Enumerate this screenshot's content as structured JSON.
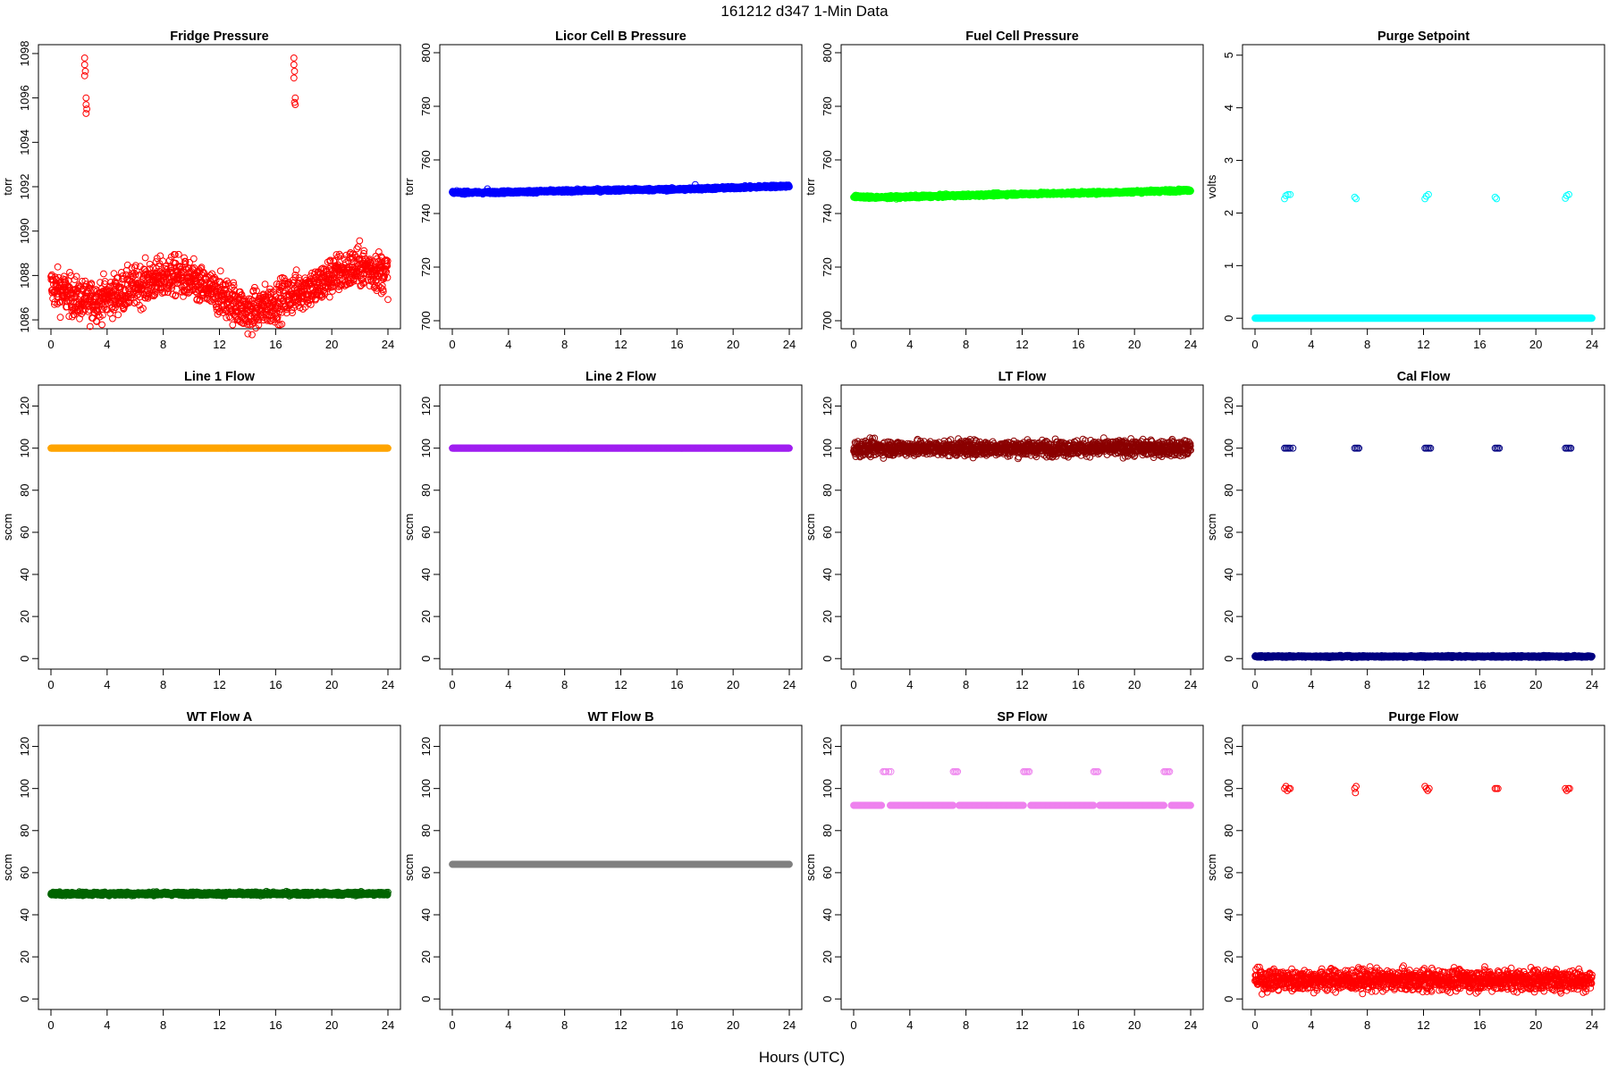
{
  "figure": {
    "title": "161212   d347   1-Min Data",
    "xlabel": "Hours (UTC)"
  },
  "chart_data": [
    {
      "type": "scatter",
      "title": "Fridge Pressure",
      "ylabel": "torr",
      "color": "#ff0000",
      "marker": "open-circle",
      "xlim": [
        0,
        24
      ],
      "xticks": [
        0,
        4,
        8,
        12,
        16,
        20,
        24
      ],
      "ylim": [
        1085.6,
        1098.4
      ],
      "yticks": [
        1086,
        1088,
        1090,
        1092,
        1094,
        1096,
        1098
      ],
      "baseline_trend": [
        [
          0,
          1087.5
        ],
        [
          1,
          1087.2
        ],
        [
          2.5,
          1086.8
        ],
        [
          4,
          1087.0
        ],
        [
          6,
          1087.5
        ],
        [
          8,
          1087.9
        ],
        [
          9,
          1088.0
        ],
        [
          11,
          1087.4
        ],
        [
          13,
          1086.8
        ],
        [
          14,
          1086.3
        ],
        [
          16,
          1086.8
        ],
        [
          18,
          1087.4
        ],
        [
          19,
          1087.5
        ],
        [
          20,
          1088.0
        ],
        [
          22,
          1088.4
        ],
        [
          24,
          1088.1
        ]
      ],
      "scatter_amplitude": 0.45,
      "spike_points": [
        [
          2.4,
          1097.8
        ],
        [
          2.4,
          1097.5
        ],
        [
          2.45,
          1097.2
        ],
        [
          2.4,
          1097.0
        ],
        [
          2.5,
          1096.0
        ],
        [
          2.5,
          1095.7
        ],
        [
          2.55,
          1095.5
        ],
        [
          2.5,
          1095.3
        ],
        [
          17.3,
          1097.8
        ],
        [
          17.3,
          1097.5
        ],
        [
          17.35,
          1097.2
        ],
        [
          17.3,
          1096.9
        ],
        [
          17.4,
          1096.0
        ],
        [
          17.35,
          1095.8
        ],
        [
          17.4,
          1095.7
        ]
      ]
    },
    {
      "type": "scatter",
      "title": "Licor Cell B Pressure",
      "ylabel": "torr",
      "color": "#0000ff",
      "marker": "open-circle",
      "xlim": [
        0,
        24
      ],
      "xticks": [
        0,
        4,
        8,
        12,
        16,
        20,
        24
      ],
      "ylim": [
        697,
        803
      ],
      "yticks": [
        700,
        720,
        740,
        760,
        780,
        800
      ],
      "baseline_trend": [
        [
          0,
          747.8
        ],
        [
          2,
          747.8
        ],
        [
          6,
          748.2
        ],
        [
          12,
          748.8
        ],
        [
          16,
          749.0
        ],
        [
          20,
          749.6
        ],
        [
          24,
          750.3
        ]
      ],
      "scatter_amplitude": 0.25,
      "spike_points": [
        [
          2.5,
          749.2
        ],
        [
          17.3,
          750.8
        ]
      ]
    },
    {
      "type": "scatter",
      "title": "Fuel Cell Pressure",
      "ylabel": "torr",
      "color": "#00ff00",
      "marker": "open-circle",
      "xlim": [
        0,
        24
      ],
      "xticks": [
        0,
        4,
        8,
        12,
        16,
        20,
        24
      ],
      "ylim": [
        697,
        803
      ],
      "yticks": [
        700,
        720,
        740,
        760,
        780,
        800
      ],
      "baseline_trend": [
        [
          0,
          746.3
        ],
        [
          2,
          746.0
        ],
        [
          6,
          746.5
        ],
        [
          12,
          747.3
        ],
        [
          18,
          747.8
        ],
        [
          24,
          748.7
        ]
      ],
      "scatter_amplitude": 0.25,
      "spike_points": []
    },
    {
      "type": "scatter",
      "title": "Purge Setpoint",
      "ylabel": "volts",
      "color": "#00ffff",
      "marker": "open-circle",
      "xlim": [
        0,
        24
      ],
      "xticks": [
        0,
        4,
        8,
        12,
        16,
        20,
        24
      ],
      "ylim": [
        -0.2,
        5.2
      ],
      "yticks": [
        0,
        1,
        2,
        3,
        4,
        5
      ],
      "baseline_trend": [
        [
          0,
          0.0
        ],
        [
          24,
          0.0
        ]
      ],
      "scatter_amplitude": 0.0,
      "spike_points": [
        [
          2.1,
          2.27
        ],
        [
          2.2,
          2.33
        ],
        [
          2.35,
          2.35
        ],
        [
          2.5,
          2.35
        ],
        [
          7.1,
          2.3
        ],
        [
          7.2,
          2.27
        ],
        [
          12.1,
          2.27
        ],
        [
          12.2,
          2.32
        ],
        [
          12.35,
          2.35
        ],
        [
          17.1,
          2.3
        ],
        [
          17.2,
          2.27
        ],
        [
          22.1,
          2.28
        ],
        [
          22.2,
          2.33
        ],
        [
          22.35,
          2.35
        ]
      ]
    },
    {
      "type": "scatter",
      "title": "Line 1 Flow",
      "ylabel": "sccm",
      "color": "#ffa500",
      "marker": "open-circle",
      "xlim": [
        0,
        24
      ],
      "xticks": [
        0,
        4,
        8,
        12,
        16,
        20,
        24
      ],
      "ylim": [
        -5,
        130
      ],
      "yticks": [
        0,
        20,
        40,
        60,
        80,
        100,
        120
      ],
      "baseline_trend": [
        [
          0,
          100
        ],
        [
          24,
          100
        ]
      ],
      "scatter_amplitude": 0.0,
      "spike_points": []
    },
    {
      "type": "scatter",
      "title": "Line 2 Flow",
      "ylabel": "sccm",
      "color": "#a020f0",
      "marker": "open-circle",
      "xlim": [
        0,
        24
      ],
      "xticks": [
        0,
        4,
        8,
        12,
        16,
        20,
        24
      ],
      "ylim": [
        -5,
        130
      ],
      "yticks": [
        0,
        20,
        40,
        60,
        80,
        100,
        120
      ],
      "baseline_trend": [
        [
          0,
          100
        ],
        [
          24,
          100
        ]
      ],
      "scatter_amplitude": 0.0,
      "spike_points": []
    },
    {
      "type": "scatter",
      "title": "LT Flow",
      "ylabel": "sccm",
      "color": "#8b0000",
      "marker": "open-circle",
      "xlim": [
        0,
        24
      ],
      "xticks": [
        0,
        4,
        8,
        12,
        16,
        20,
        24
      ],
      "ylim": [
        -5,
        130
      ],
      "yticks": [
        0,
        20,
        40,
        60,
        80,
        100,
        120
      ],
      "baseline_trend": [
        [
          0,
          100
        ],
        [
          24,
          100
        ]
      ],
      "scatter_amplitude": 1.8,
      "spike_points": []
    },
    {
      "type": "scatter",
      "title": "Cal Flow",
      "ylabel": "sccm",
      "color": "#000080",
      "marker": "open-circle",
      "xlim": [
        0,
        24
      ],
      "xticks": [
        0,
        4,
        8,
        12,
        16,
        20,
        24
      ],
      "ylim": [
        -5,
        130
      ],
      "yticks": [
        0,
        20,
        40,
        60,
        80,
        100,
        120
      ],
      "baseline_trend": [
        [
          0,
          1
        ],
        [
          24,
          1
        ]
      ],
      "scatter_amplitude": 0.2,
      "spike_points": [
        [
          2.1,
          100
        ],
        [
          2.2,
          100
        ],
        [
          2.3,
          100
        ],
        [
          2.4,
          100
        ],
        [
          2.5,
          100
        ],
        [
          2.7,
          100
        ],
        [
          7.1,
          100
        ],
        [
          7.2,
          100
        ],
        [
          7.3,
          100
        ],
        [
          7.4,
          100
        ],
        [
          12.1,
          100
        ],
        [
          12.2,
          100
        ],
        [
          12.3,
          100
        ],
        [
          12.4,
          100
        ],
        [
          12.5,
          100
        ],
        [
          17.1,
          100
        ],
        [
          17.2,
          100
        ],
        [
          17.3,
          100
        ],
        [
          17.4,
          100
        ],
        [
          22.1,
          100
        ],
        [
          22.2,
          100
        ],
        [
          22.3,
          100
        ],
        [
          22.4,
          100
        ],
        [
          22.5,
          100
        ]
      ]
    },
    {
      "type": "scatter",
      "title": "WT Flow A",
      "ylabel": "sccm",
      "color": "#006400",
      "marker": "open-circle",
      "xlim": [
        0,
        24
      ],
      "xticks": [
        0,
        4,
        8,
        12,
        16,
        20,
        24
      ],
      "ylim": [
        -5,
        130
      ],
      "yticks": [
        0,
        20,
        40,
        60,
        80,
        100,
        120
      ],
      "baseline_trend": [
        [
          0,
          50
        ],
        [
          24,
          50
        ]
      ],
      "scatter_amplitude": 0.4,
      "spike_points": []
    },
    {
      "type": "scatter",
      "title": "WT Flow B",
      "ylabel": "sccm",
      "color": "#808080",
      "marker": "open-circle",
      "xlim": [
        0,
        24
      ],
      "xticks": [
        0,
        4,
        8,
        12,
        16,
        20,
        24
      ],
      "ylim": [
        -5,
        130
      ],
      "yticks": [
        0,
        20,
        40,
        60,
        80,
        100,
        120
      ],
      "baseline_trend": [
        [
          0,
          64
        ],
        [
          24,
          64
        ]
      ],
      "scatter_amplitude": 0.0,
      "spike_points": []
    },
    {
      "type": "scatter",
      "title": "SP Flow",
      "ylabel": "sccm",
      "color": "#ee82ee",
      "marker": "open-circle",
      "xlim": [
        0,
        24
      ],
      "xticks": [
        0,
        4,
        8,
        12,
        16,
        20,
        24
      ],
      "ylim": [
        -5,
        130
      ],
      "yticks": [
        0,
        20,
        40,
        60,
        80,
        100,
        120
      ],
      "baseline_trend": [
        [
          0,
          92
        ],
        [
          24,
          92
        ]
      ],
      "scatter_amplitude": 0.0,
      "gaps": [
        [
          2.0,
          2.6
        ],
        [
          7.1,
          7.5
        ],
        [
          12.1,
          12.6
        ],
        [
          17.1,
          17.5
        ],
        [
          22.1,
          22.6
        ]
      ],
      "spike_points": [
        [
          2.1,
          108
        ],
        [
          2.2,
          108
        ],
        [
          2.3,
          108
        ],
        [
          2.5,
          108
        ],
        [
          2.65,
          108
        ],
        [
          7.1,
          108
        ],
        [
          7.2,
          108
        ],
        [
          7.3,
          108
        ],
        [
          7.4,
          108
        ],
        [
          12.1,
          108
        ],
        [
          12.2,
          108
        ],
        [
          12.3,
          108
        ],
        [
          12.4,
          108
        ],
        [
          12.5,
          108
        ],
        [
          17.1,
          108
        ],
        [
          17.2,
          108
        ],
        [
          17.3,
          108
        ],
        [
          17.4,
          108
        ],
        [
          22.1,
          108
        ],
        [
          22.2,
          108
        ],
        [
          22.3,
          108
        ],
        [
          22.4,
          108
        ],
        [
          22.5,
          108
        ]
      ]
    },
    {
      "type": "scatter",
      "title": "Purge Flow",
      "ylabel": "sccm",
      "color": "#ff0000",
      "marker": "open-circle",
      "xlim": [
        0,
        24
      ],
      "xticks": [
        0,
        4,
        8,
        12,
        16,
        20,
        24
      ],
      "ylim": [
        -5,
        130
      ],
      "yticks": [
        0,
        20,
        40,
        60,
        80,
        100,
        120
      ],
      "baseline_trend": [
        [
          0,
          9
        ],
        [
          24,
          9
        ]
      ],
      "scatter_amplitude": 2.5,
      "spike_points": [
        [
          2.1,
          100
        ],
        [
          2.2,
          101
        ],
        [
          2.3,
          99
        ],
        [
          2.4,
          100
        ],
        [
          2.5,
          100
        ],
        [
          7.1,
          100
        ],
        [
          7.15,
          98
        ],
        [
          7.2,
          101
        ],
        [
          12.1,
          101
        ],
        [
          12.2,
          100
        ],
        [
          12.3,
          99
        ],
        [
          12.4,
          100
        ],
        [
          17.1,
          100
        ],
        [
          17.2,
          100
        ],
        [
          17.3,
          100
        ],
        [
          22.1,
          100
        ],
        [
          22.2,
          99
        ],
        [
          22.3,
          100
        ],
        [
          22.4,
          100
        ]
      ]
    }
  ]
}
